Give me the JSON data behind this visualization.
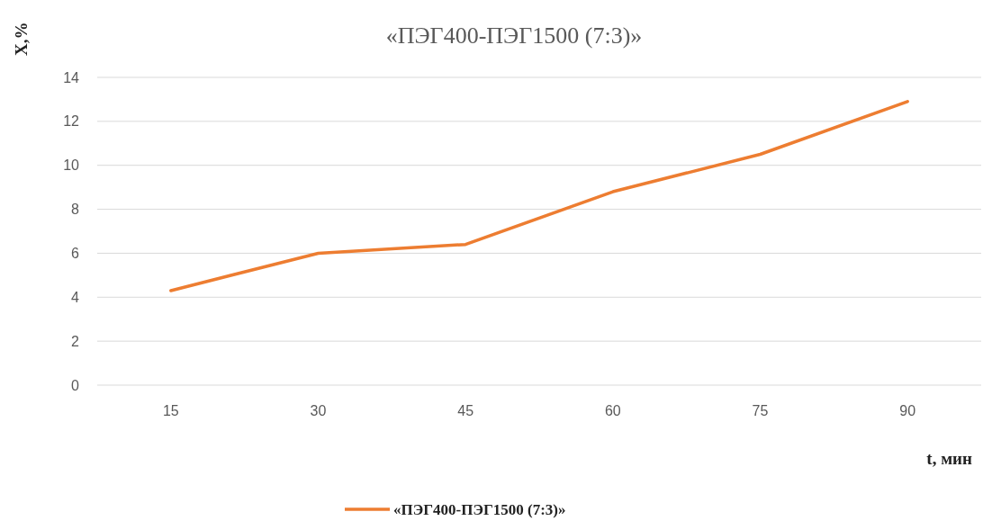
{
  "chart_data": {
    "type": "line",
    "title": "«ПЭГ400-ПЭГ1500 (7:3)»",
    "xlabel": "t, мин",
    "ylabel": "X,%",
    "categories": [
      "15",
      "30",
      "45",
      "60",
      "75",
      "90"
    ],
    "series": [
      {
        "name": "«ПЭГ400-ПЭГ1500 (7:3)»",
        "color": "#ed7d31",
        "values": [
          4.3,
          6.0,
          6.4,
          8.8,
          10.5,
          12.9
        ]
      }
    ],
    "ylim": [
      0,
      14
    ],
    "yticks": [
      0,
      2,
      4,
      6,
      8,
      10,
      12,
      14
    ],
    "grid": "y",
    "legend": "bottom"
  }
}
